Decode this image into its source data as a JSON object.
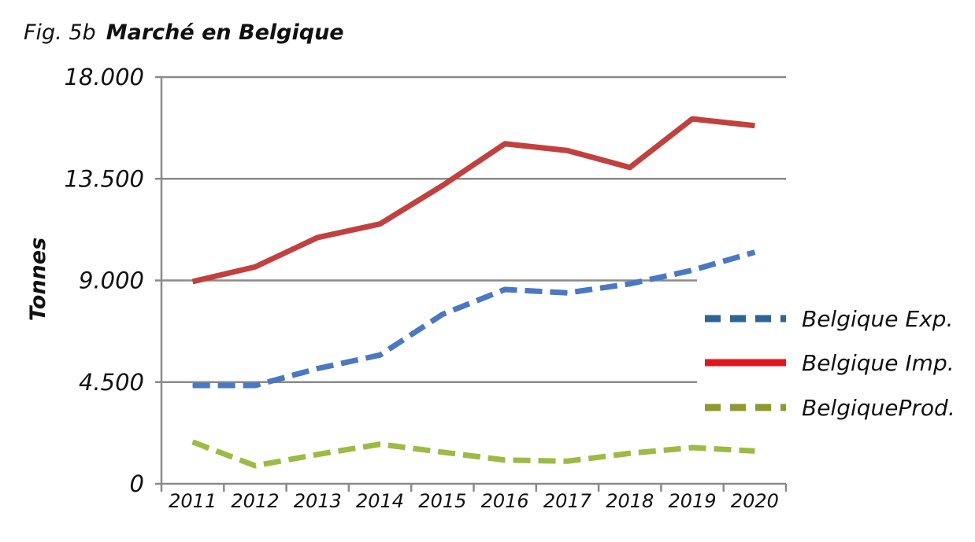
{
  "chart_data": {
    "type": "line",
    "title_prefix": "Fig. 5b",
    "title": "Marché en Belgique",
    "ylabel": "Tonnes",
    "xlabel": "",
    "ylim": [
      0,
      18000
    ],
    "yticks": [
      0,
      4500,
      9000,
      13500,
      18000
    ],
    "ytick_labels": [
      "0",
      "4.500",
      "9.000",
      "13.500",
      "18.000"
    ],
    "categories": [
      "2011",
      "2012",
      "2013",
      "2014",
      "2015",
      "2016",
      "2017",
      "2018",
      "2019",
      "2020"
    ],
    "grid": true,
    "legend_position": "right",
    "series": [
      {
        "name": "Belgique Exp.",
        "color": "#4a78c2",
        "legend_color": "#2e6599",
        "style": "dashed",
        "values": [
          4350,
          4350,
          5100,
          5700,
          7500,
          8600,
          8450,
          8850,
          9450,
          10250
        ]
      },
      {
        "name": "Belgique Imp.",
        "color": "#c2413e",
        "legend_color": "#e0161c",
        "style": "solid",
        "values": [
          8950,
          9600,
          10900,
          11500,
          13200,
          15050,
          14750,
          14000,
          16150,
          15850
        ]
      },
      {
        "name": "BelgiqueProd.",
        "color": "#9cbb45",
        "legend_color": "#8f9a2a",
        "style": "dashed",
        "values": [
          1850,
          800,
          1300,
          1750,
          1400,
          1050,
          1000,
          1350,
          1600,
          1450
        ]
      }
    ]
  }
}
